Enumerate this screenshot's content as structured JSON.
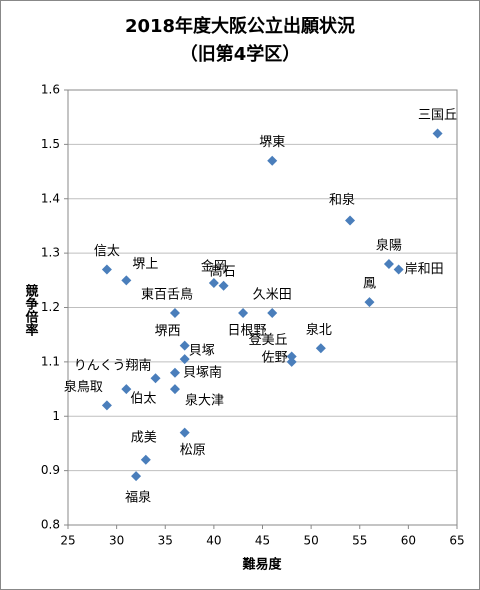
{
  "chart_data": {
    "type": "scatter",
    "title": "2018年度大阪公立出願状況",
    "subtitle": "（旧第4学区）",
    "x_label": "難易度",
    "y_label": "競争倍率",
    "color": "#4a7ebb",
    "grid": true,
    "point_labels": [
      "三国丘",
      "堺東",
      "和泉",
      "泉陽",
      "岸和田",
      "信太",
      "堺上",
      "金岡",
      "高石",
      "東百舌鳥",
      "久米田",
      "日根野",
      "鳳",
      "泉北",
      "登美丘",
      "佐野",
      "堺西",
      "貝塚",
      "貝塚南",
      "りんくう翔南",
      "泉大津",
      "泉鳥取",
      "伯太",
      "成美",
      "松原",
      "福泉"
    ],
    "x": [
      63,
      46,
      54,
      58,
      59,
      29,
      31,
      40,
      41,
      36,
      46,
      43,
      56,
      51,
      48,
      48,
      37,
      37,
      36,
      34,
      36,
      29,
      31,
      33,
      37,
      32
    ],
    "values": [
      1.52,
      1.47,
      1.36,
      1.28,
      1.27,
      1.27,
      1.25,
      1.245,
      1.24,
      1.19,
      1.19,
      1.19,
      1.21,
      1.125,
      1.11,
      1.1,
      1.13,
      1.105,
      1.08,
      1.07,
      1.05,
      1.02,
      1.05,
      0.92,
      0.97,
      0.89
    ],
    "xlim": [
      25,
      65
    ],
    "xticks": [
      25,
      30,
      35,
      40,
      45,
      50,
      55,
      60,
      65
    ],
    "ylim": [
      0.8,
      1.6
    ],
    "yticks": [
      0.8,
      0.9,
      1,
      1.1,
      1.2,
      1.3,
      1.4,
      1.5,
      1.6
    ]
  }
}
